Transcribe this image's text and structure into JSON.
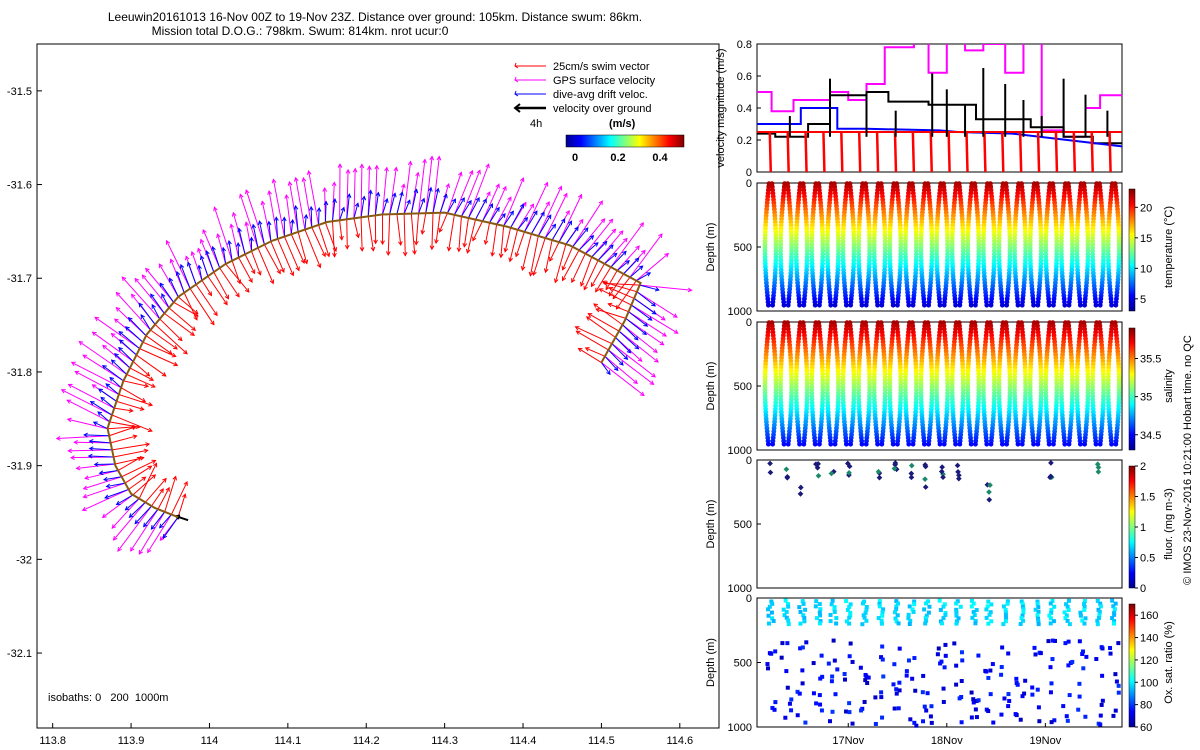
{
  "title_line1": "Leeuwin20161013 16-Nov 00Z to 19-Nov 23Z. Distance over ground: 105km. Distance swum: 86km.",
  "title_line2": "Mission total D.O.G.: 798km. Swum: 814km. nrot ucur:0",
  "credit": "© IMOS 23-Nov-2016 10:21:00 Hobart time. no QC",
  "colors": {
    "swim": "#ff0000",
    "gps": "#ff00ff",
    "drift": "#0000ff",
    "ground": "#000000",
    "isobath": "#8a5a10"
  },
  "chart_data": [
    {
      "type": "scatter",
      "xlim": [
        113.78,
        114.65
      ],
      "ylim": [
        -32.18,
        -31.45
      ],
      "xticks": [
        "113.8",
        "113.9",
        "114",
        "114.1",
        "114.2",
        "114.3",
        "114.4",
        "114.5",
        "114.6"
      ],
      "yticks": [
        "-31.5",
        "-31.6",
        "-31.7",
        "-31.8",
        "-31.9",
        "-32",
        "-32.1"
      ],
      "track": [
        [
          113.96,
          -31.955
        ],
        [
          113.93,
          -31.945
        ],
        [
          113.9,
          -31.93
        ],
        [
          113.88,
          -31.9
        ],
        [
          113.87,
          -31.86
        ],
        [
          113.89,
          -31.81
        ],
        [
          113.92,
          -31.76
        ],
        [
          113.96,
          -31.72
        ],
        [
          114.02,
          -31.685
        ],
        [
          114.08,
          -31.66
        ],
        [
          114.15,
          -31.64
        ],
        [
          114.22,
          -31.632
        ],
        [
          114.3,
          -31.63
        ],
        [
          114.38,
          -31.645
        ],
        [
          114.46,
          -31.665
        ],
        [
          114.55,
          -31.705
        ],
        [
          114.53,
          -31.745
        ],
        [
          114.5,
          -31.79
        ]
      ],
      "legend": [
        "25cm/s swim vector",
        "GPS surface velocity",
        "dive-avg drift veloc.",
        "velocity over ground"
      ],
      "time_label": "4h",
      "colorbar_title": "(m/s)",
      "colorbar_ticks": [
        "0",
        "0.2",
        "0.4"
      ],
      "annotation": "isobaths: 0   200  1000m"
    },
    {
      "type": "line",
      "ylabel": "velocity magnitude (m/s)",
      "ylim": [
        0,
        0.8
      ],
      "yticks": [
        "0",
        "0.2",
        "0.4",
        "0.6",
        "0.8"
      ],
      "series": [
        {
          "color": "#ff00ff",
          "x": [
            0,
            0.04,
            0.04,
            0.1,
            0.1,
            0.2,
            0.2,
            0.25,
            0.25,
            0.3,
            0.3,
            0.35,
            0.35,
            0.43,
            0.43,
            0.47,
            0.47,
            0.52,
            0.52,
            0.57,
            0.57,
            0.62,
            0.62,
            0.68,
            0.68,
            0.73,
            0.73,
            0.78,
            0.78,
            0.84,
            0.84,
            0.9,
            0.9,
            0.94,
            0.94,
            1.0
          ],
          "y": [
            0.5,
            0.5,
            0.38,
            0.38,
            0.45,
            0.45,
            0.5,
            0.5,
            0.45,
            0.45,
            0.55,
            0.55,
            0.78,
            0.78,
            0.9,
            0.9,
            0.62,
            0.62,
            0.9,
            0.9,
            0.76,
            0.76,
            0.8,
            0.8,
            0.62,
            0.62,
            0.9,
            0.9,
            0.26,
            0.26,
            0.22,
            0.22,
            0.4,
            0.4,
            0.48,
            0.48
          ]
        },
        {
          "color": "#000000",
          "x": [
            0,
            0.05,
            0.05,
            0.14,
            0.14,
            0.2,
            0.2,
            0.3,
            0.3,
            0.36,
            0.36,
            0.47,
            0.47,
            0.6,
            0.6,
            0.75,
            0.75,
            0.84,
            0.84,
            0.92,
            0.92,
            1.0
          ],
          "y": [
            0.24,
            0.24,
            0.22,
            0.22,
            0.3,
            0.3,
            0.48,
            0.48,
            0.5,
            0.5,
            0.44,
            0.44,
            0.42,
            0.42,
            0.33,
            0.33,
            0.28,
            0.28,
            0.22,
            0.22,
            0.18,
            0.18
          ]
        },
        {
          "color": "#0000ff",
          "x": [
            0,
            0.12,
            0.12,
            0.22,
            0.22,
            0.3,
            0.3,
            0.5,
            0.55,
            0.7,
            0.85,
            1.0
          ],
          "y": [
            0.3,
            0.3,
            0.4,
            0.4,
            0.27,
            0.27,
            0.27,
            0.26,
            0.25,
            0.24,
            0.2,
            0.16
          ]
        },
        {
          "color": "#ff0000",
          "x": [
            0,
            1.0
          ],
          "y": [
            0.25,
            0.25
          ]
        }
      ]
    },
    {
      "type": "scatter",
      "ylabel": "Depth (m)",
      "ylim": [
        0,
        1000
      ],
      "yticks": [
        "0",
        "500",
        "1000"
      ],
      "colorbar_label": "temperature (°C)",
      "colorbar_ticks": [
        "5",
        "10",
        "15",
        "20"
      ],
      "clim": [
        3,
        23
      ]
    },
    {
      "type": "scatter",
      "ylabel": "Depth (m)",
      "ylim": [
        0,
        1000
      ],
      "yticks": [
        "0",
        "500",
        "1000"
      ],
      "colorbar_label": "salinity",
      "colorbar_ticks": [
        "34.5",
        "35",
        "35.5"
      ],
      "clim": [
        34.3,
        35.9
      ]
    },
    {
      "type": "scatter",
      "ylabel": "Depth (m)",
      "ylim": [
        0,
        1000
      ],
      "yticks": [
        "0",
        "500",
        "1000"
      ],
      "colorbar_label": "fluor. (mg m-3)",
      "colorbar_ticks": [
        "0",
        "0.5",
        "1",
        "1.5",
        "2"
      ],
      "clim": [
        0,
        2
      ]
    },
    {
      "type": "scatter",
      "ylabel": "Depth (m)",
      "ylim": [
        0,
        1000
      ],
      "yticks": [
        "0",
        "500",
        "1000"
      ],
      "colorbar_label": "Ox. sat. ratio (%)",
      "colorbar_ticks": [
        "60",
        "80",
        "100",
        "120",
        "140",
        "160"
      ],
      "clim": [
        60,
        170
      ],
      "xticks": [
        "17Nov",
        "18Nov",
        "19Nov"
      ]
    }
  ]
}
